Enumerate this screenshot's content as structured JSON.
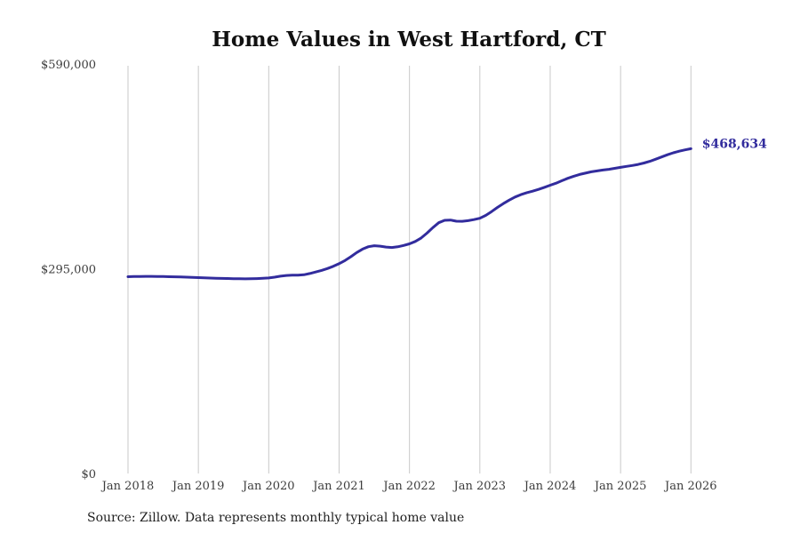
{
  "source_note": "Source: Zillow. Data represents monthly typical home value",
  "chart_data": {
    "type": "line",
    "title": "Home Values in West Hartford, CT",
    "xlabel": "",
    "ylabel": "",
    "ylim": [
      0,
      590000
    ],
    "grid": "vertical-only",
    "legend": "none",
    "end_label": "$468,634",
    "end_value": 468634,
    "line_color": "#322c9d",
    "grid_color": "#c9c9c9",
    "tick_label_color": "#3d3d3d",
    "x_ticks": [
      "Jan 2018",
      "Jan 2019",
      "Jan 2020",
      "Jan 2021",
      "Jan 2022",
      "Jan 2023",
      "Jan 2024",
      "Jan 2025",
      "Jan 2026"
    ],
    "y_ticks": [
      {
        "label": "$0",
        "value": 0
      },
      {
        "label": "$295,000",
        "value": 295000
      },
      {
        "label": "$590,000",
        "value": 590000
      }
    ],
    "series": [
      {
        "name": "Typical home value (monthly)",
        "x_start": "Jan 2018",
        "x_end": "Jan 2026",
        "interval": "monthly",
        "values": [
          284200,
          284400,
          284600,
          284700,
          284700,
          284600,
          284400,
          284200,
          284000,
          283800,
          283500,
          283200,
          282900,
          282500,
          282200,
          282000,
          281800,
          281600,
          281400,
          281200,
          281100,
          281200,
          281500,
          281900,
          282400,
          283500,
          285000,
          286000,
          286300,
          286300,
          287000,
          288800,
          291000,
          293300,
          296000,
          299200,
          303000,
          307500,
          313000,
          319000,
          324000,
          327500,
          328800,
          328200,
          327000,
          326300,
          327300,
          329200,
          331500,
          335000,
          340000,
          347000,
          355000,
          362000,
          365500,
          365800,
          364200,
          364000,
          365000,
          366500,
          368400,
          372500,
          378000,
          384000,
          389500,
          394500,
          399000,
          402500,
          405300,
          407400,
          410000,
          413000,
          416000,
          419000,
          422500,
          426000,
          429000,
          431500,
          433500,
          435300,
          436700,
          437900,
          439000,
          440300,
          441800,
          443200,
          444500,
          446000,
          448000,
          450500,
          453500,
          456800,
          460000,
          462800,
          465000,
          467000,
          468634
        ]
      }
    ]
  }
}
